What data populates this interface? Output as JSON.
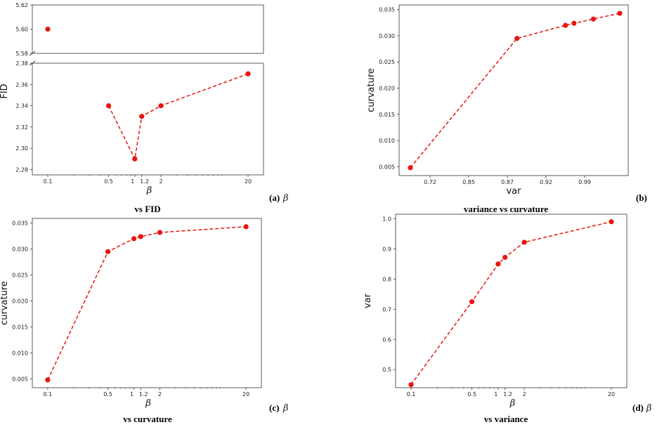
{
  "accent_color": "#e8150f",
  "chart_data": [
    {
      "type": "line",
      "panel_label": "(a)",
      "panel_symbol": "β",
      "caption": "vs FID",
      "xlabel": "β",
      "ylabel": "FID",
      "x_scale": "log",
      "x_ticks": [
        "0.1",
        "0.5",
        "1",
        "1.2",
        "2",
        "20"
      ],
      "x": [
        0.5,
        1,
        1.2,
        2,
        20
      ],
      "y": [
        2.34,
        2.29,
        2.33,
        2.34,
        2.37
      ],
      "extra_point": {
        "x": 0.1,
        "y": 5.6
      },
      "y_break": true,
      "upper_ylim": [
        5.58,
        5.62
      ],
      "upper_yticks": [
        "5.58",
        "5.60",
        "5.62"
      ],
      "lower_ylim": [
        2.275,
        2.38
      ],
      "lower_yticks": [
        "2.28",
        "2.30",
        "2.32",
        "2.34",
        "2.36",
        "2.38"
      ],
      "grid": false
    },
    {
      "type": "line",
      "panel_label": "(b)",
      "panel_symbol": "",
      "caption": "variance vs curvature",
      "xlabel": "var",
      "ylabel": "curvature",
      "x_scale": "linear",
      "x_ticks": [
        "0.72",
        "0.85",
        "0.87",
        "0.92",
        "0.99"
      ],
      "x": [
        0.45,
        0.725,
        0.85,
        0.872,
        0.922,
        0.99
      ],
      "y": [
        0.0048,
        0.0295,
        0.032,
        0.0324,
        0.0332,
        0.0343
      ],
      "y_ticks": [
        "0.005",
        "0.010",
        "0.015",
        "0.020",
        "0.025",
        "0.030",
        "0.035"
      ],
      "grid": false
    },
    {
      "type": "line",
      "panel_label": "(c)",
      "panel_symbol": "β",
      "caption": "vs curvature",
      "xlabel": "β",
      "ylabel": "curvature",
      "x_scale": "log",
      "x_ticks": [
        "0.1",
        "0.5",
        "1",
        "1.2",
        "2",
        "20"
      ],
      "x": [
        0.1,
        0.5,
        1,
        1.2,
        2,
        20
      ],
      "y": [
        0.0048,
        0.0295,
        0.032,
        0.0324,
        0.0332,
        0.0343
      ],
      "y_ticks": [
        "0.005",
        "0.010",
        "0.015",
        "0.020",
        "0.025",
        "0.030",
        "0.035"
      ],
      "grid": false
    },
    {
      "type": "line",
      "panel_label": "(d)",
      "panel_symbol": "β",
      "caption": "vs variance",
      "xlabel": "β",
      "ylabel": "var",
      "x_scale": "log",
      "x_ticks": [
        "0.1",
        "0.5",
        "1",
        "1.2",
        "2",
        "20"
      ],
      "x": [
        0.1,
        0.5,
        1,
        1.2,
        2,
        20
      ],
      "y": [
        0.45,
        0.725,
        0.85,
        0.872,
        0.922,
        0.99
      ],
      "y_ticks": [
        "0.5",
        "0.6",
        "0.7",
        "0.8",
        "0.9",
        "1.0"
      ],
      "grid": false
    }
  ]
}
